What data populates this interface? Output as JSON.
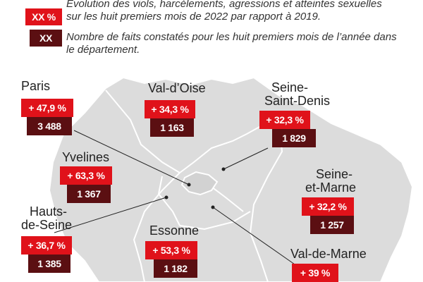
{
  "legend": {
    "pct_sample": "XX %",
    "count_sample": "XX",
    "line1": "Évolution des viols, harcèlements, agressions et atteintes sexuelles sur les huit premiers mois de 2022 par rapport à 2019.",
    "line2": "Nombre de faits constatés pour les huit premiers mois de l’année dans le département."
  },
  "colors": {
    "increase_red": "#e0121a",
    "count_dark": "#5b0f12",
    "map_fill": "#dcdcdc",
    "borders": "#ffffff"
  },
  "departments": {
    "paris": {
      "name": "Paris",
      "change": "+ 47,9 %",
      "count": "3 488"
    },
    "val_doise": {
      "name": "Val-d’Oise",
      "change": "+ 34,3 %",
      "count": "1 163"
    },
    "seine_saint_denis": {
      "name_line1": "Seine-",
      "name_line2": "Saint-Denis",
      "change": "+ 32,3 %",
      "count": "1 829"
    },
    "yvelines": {
      "name": "Yvelines",
      "change": "+ 63,3 %",
      "count": "1 367"
    },
    "seine_et_marne": {
      "name_line1": "Seine-",
      "name_line2": "et-Marne",
      "change": "+ 32,2 %",
      "count": "1 257"
    },
    "hauts_de_seine": {
      "name_line1": "Hauts-",
      "name_line2": "de-Seine",
      "change": "+ 36,7 %",
      "count": "1 385"
    },
    "essonne": {
      "name": "Essonne",
      "change": "+ 53,3 %",
      "count": "1 182"
    },
    "val_de_marne": {
      "name": "Val-de-Marne",
      "change": "+ 39 %"
    }
  }
}
